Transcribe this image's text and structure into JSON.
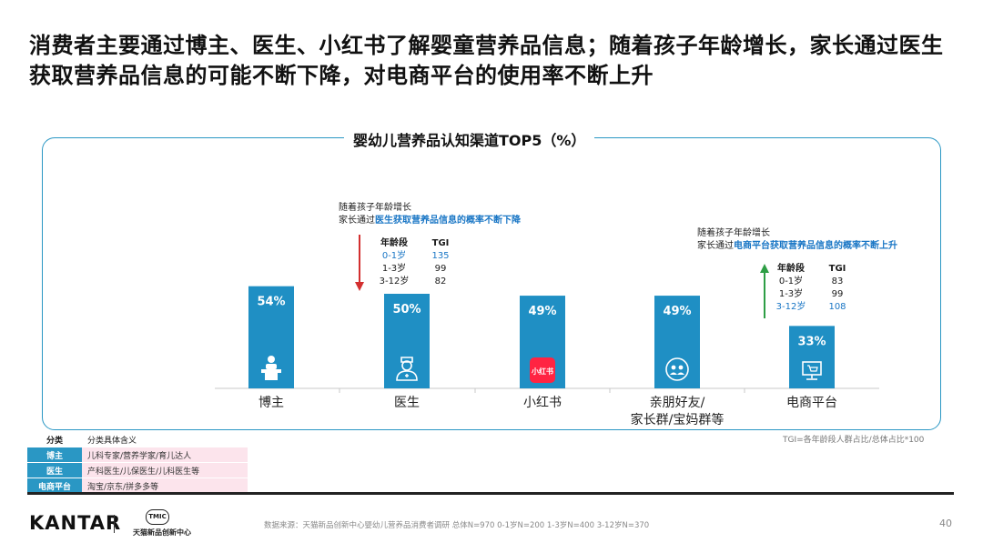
{
  "headline": "消费者主要通过博主、医生、小红书了解婴童营养品信息；随着孩子年龄增长，家长通过医生获取营养品信息的可能不断下降，对电商平台的使用率不断上升",
  "colors": {
    "bar": "#1f8fc4",
    "accent_text": "#1976c5",
    "down_arrow": "#d32f2f",
    "up_arrow": "#2e9e45",
    "rednote": "#ff2442",
    "legend_key": "#2a97c4",
    "legend_val": "#fce4ec"
  },
  "chart_data": {
    "type": "bar",
    "title": "婴幼儿营养品认知渠道TOP5（%）",
    "categories": [
      "博主",
      "医生",
      "小红书",
      "亲朋好友/家长群/宝妈群等",
      "电商平台"
    ],
    "category_lines": [
      [
        "博主"
      ],
      [
        "医生"
      ],
      [
        "小红书"
      ],
      [
        "亲朋好友/",
        "家长群/宝妈群等"
      ],
      [
        "电商平台"
      ]
    ],
    "values": [
      54,
      50,
      49,
      49,
      33
    ],
    "value_labels": [
      "54%",
      "50%",
      "49%",
      "49%",
      "33%"
    ],
    "icons": [
      "teacher-podium-icon",
      "doctor-icon",
      "rednote-logo-icon",
      "chat-group-icon",
      "computer-shop-icon"
    ],
    "rednote_label": "小红书",
    "ylim": [
      0,
      60
    ]
  },
  "notes": {
    "doctor": {
      "line1": "随着孩子年龄增长",
      "line2_prefix": "家长通过",
      "line2_highlight": "医生获取营养品信息的概率不断下降"
    },
    "ecommerce": {
      "line1": "随着孩子年龄增长",
      "line2_prefix": "家长通过",
      "line2_highlight": "电商平台获取营养品信息的概率不断上升"
    }
  },
  "tgi_doctor": {
    "headers": [
      "年龄段",
      "TGI"
    ],
    "rows": [
      [
        "0-1岁",
        "135"
      ],
      [
        "1-3岁",
        "99"
      ],
      [
        "3-12岁",
        "82"
      ]
    ]
  },
  "tgi_ecommerce": {
    "headers": [
      "年龄段",
      "TGI"
    ],
    "rows": [
      [
        "0-1岁",
        "83"
      ],
      [
        "1-3岁",
        "99"
      ],
      [
        "3-12岁",
        "108"
      ]
    ]
  },
  "tgi_note": "TGI=各年龄段人群占比/总体占比*100",
  "legend": {
    "headers": [
      "分类",
      "分类具体含义"
    ],
    "rows": [
      [
        "博主",
        "儿科专家/营养学家/育儿达人"
      ],
      [
        "医生",
        "产科医生/儿保医生/儿科医生等"
      ],
      [
        "电商平台",
        "淘宝/京东/拼多多等"
      ]
    ]
  },
  "footer": {
    "logo": "KANTAR",
    "partner_badge": "TMIC",
    "partner_name": "天猫新品创新中心",
    "source": "数据来源：天猫新品创新中心婴幼儿营养品消费者调研  总体N=970 0-1岁N=200 1-3岁N=400 3-12岁N=370",
    "page": "40"
  }
}
